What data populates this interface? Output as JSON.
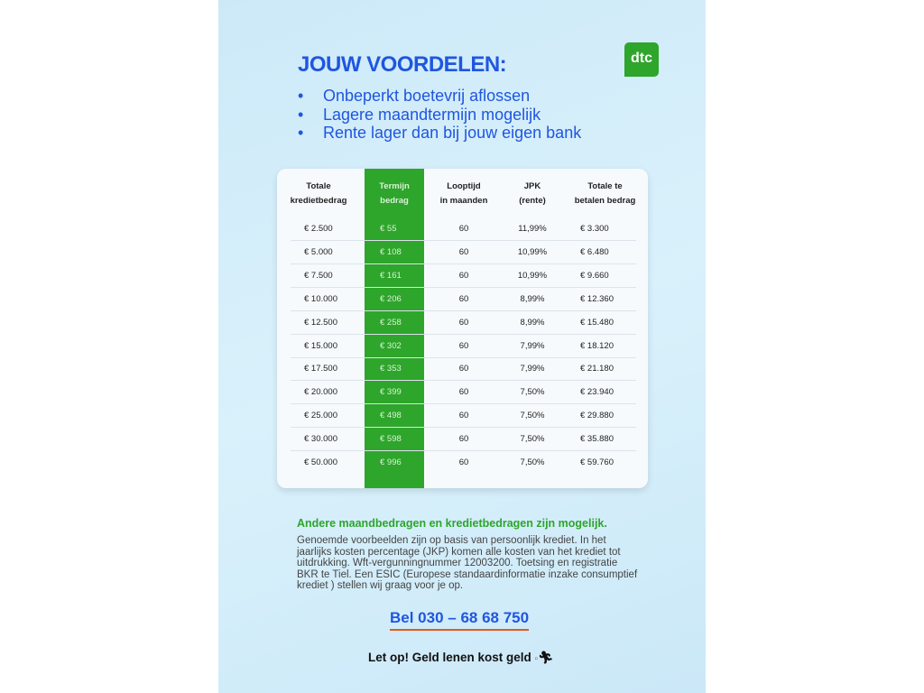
{
  "header": {
    "title": "JOUW VOORDELEN:",
    "logo_text": "dtc",
    "brand_color": "#2ea52b",
    "accent_color": "#1f56e0"
  },
  "benefits": [
    "Onbeperkt boetevrij aflossen",
    "Lagere maandtermijn mogelijk",
    "Rente lager dan bij jouw eigen bank"
  ],
  "table": {
    "headers": [
      [
        "Totale",
        "kredietbedrag"
      ],
      [
        "Termijn",
        "bedrag"
      ],
      [
        "Looptijd",
        "in maanden"
      ],
      [
        "JPK",
        "(rente)"
      ],
      [
        "Totale te",
        "betalen bedrag"
      ]
    ],
    "rows": [
      [
        "€ 2.500",
        "€ 55",
        "60",
        "11,99%",
        "€ 3.300"
      ],
      [
        "€ 5.000",
        "€ 108",
        "60",
        "10,99%",
        "€ 6.480"
      ],
      [
        "€ 7.500",
        "€ 161",
        "60",
        "10,99%",
        "€ 9.660"
      ],
      [
        "€ 10.000",
        "€ 206",
        "60",
        "8,99%",
        "€ 12.360"
      ],
      [
        "€ 12.500",
        "€ 258",
        "60",
        "8,99%",
        "€ 15.480"
      ],
      [
        "€ 15.000",
        "€ 302",
        "60",
        "7,99%",
        "€ 18.120"
      ],
      [
        "€ 17.500",
        "€ 353",
        "60",
        "7,99%",
        "€ 21.180"
      ],
      [
        "€ 20.000",
        "€ 399",
        "60",
        "7,50%",
        "€ 23.940"
      ],
      [
        "€ 25.000",
        "€ 498",
        "60",
        "7,50%",
        "€ 29.880"
      ],
      [
        "€ 30.000",
        "€ 598",
        "60",
        "7,50%",
        "€ 35.880"
      ],
      [
        "€ 50.000",
        "€ 996",
        "60",
        "7,50%",
        "€ 59.760"
      ]
    ]
  },
  "note": "Andere maandbedragen en kredietbedragen zijn mogelijk.",
  "disclaimer": "Genoemde voorbeelden zijn op basis van persoonlijk krediet. In het jaarlijks kosten percentage (JKP) komen alle kosten van het krediet tot uitdrukking. Wft-vergunningnummer 12003200. Toetsing en registratie BKR te Tiel. Een ESIC (Europese standaardinformatie inzake consumptief krediet ) stellen wij graag voor je op.",
  "phone": "Bel 030 – 68 68 750",
  "warning": "Let op! Geld lenen kost geld"
}
